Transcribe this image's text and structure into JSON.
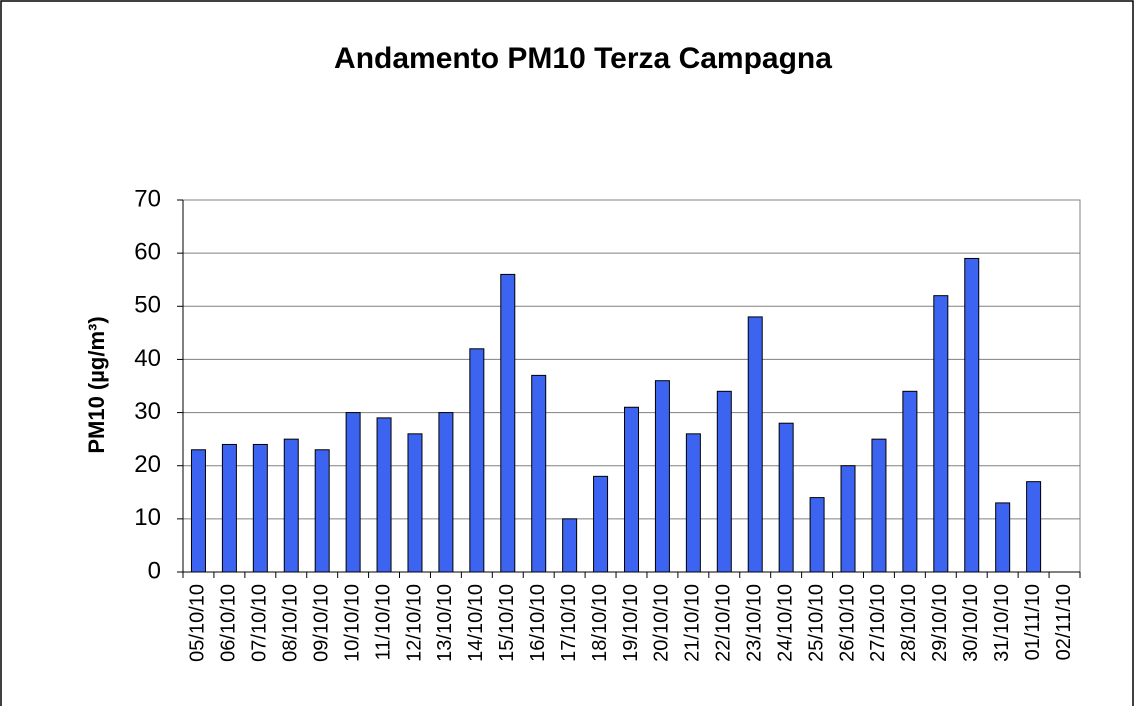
{
  "chart_data": {
    "type": "bar",
    "title": "Andamento PM10 Terza Campagna",
    "y_label": "PM10 (µg/m³)",
    "categories": [
      "05/10/10",
      "06/10/10",
      "07/10/10",
      "08/10/10",
      "09/10/10",
      "10/10/10",
      "11/10/10",
      "12/10/10",
      "13/10/10",
      "14/10/10",
      "15/10/10",
      "16/10/10",
      "17/10/10",
      "18/10/10",
      "19/10/10",
      "20/10/10",
      "21/10/10",
      "22/10/10",
      "23/10/10",
      "24/10/10",
      "25/10/10",
      "26/10/10",
      "27/10/10",
      "28/10/10",
      "29/10/10",
      "30/10/10",
      "31/10/10",
      "01/11/10",
      "02/11/10"
    ],
    "values": [
      23,
      24,
      24,
      25,
      23,
      30,
      29,
      26,
      30,
      42,
      56,
      37,
      10,
      18,
      31,
      36,
      26,
      34,
      48,
      28,
      14,
      20,
      25,
      34,
      52,
      59,
      13,
      17,
      null
    ],
    "color": "#3c64f0",
    "ylim": [
      0,
      70
    ],
    "yticks": [
      0,
      10,
      20,
      30,
      40,
      50,
      60,
      70
    ],
    "grid": true
  }
}
